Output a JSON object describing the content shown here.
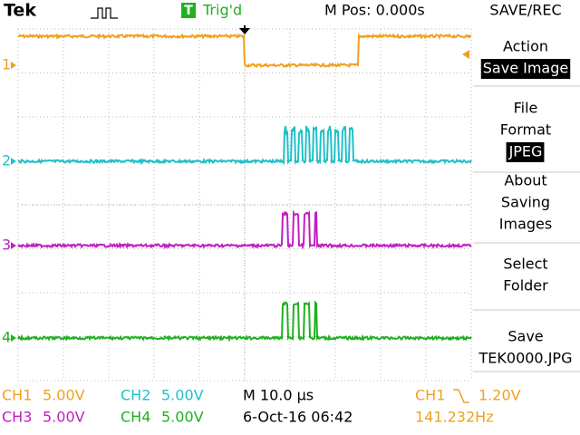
{
  "header": {
    "brand": "Tek",
    "trigger_source": "T",
    "trigger_status": "Trig'd",
    "position": "M Pos: 0.000s",
    "menu_title": "SAVE/REC"
  },
  "menu": [
    {
      "lines": [
        "Action"
      ],
      "value": "Save Image"
    },
    {
      "lines": [
        "File",
        "Format"
      ],
      "value": "JPEG"
    },
    {
      "lines": [
        "About",
        "Saving",
        "Images"
      ]
    },
    {
      "lines": [
        "Select",
        "Folder"
      ]
    },
    {
      "lines": [
        "Save"
      ],
      "value": "TEK0000.JPG"
    }
  ],
  "channels": [
    {
      "marker": "1",
      "name": "CH1",
      "scale": "5.00V"
    },
    {
      "marker": "2",
      "name": "CH2",
      "scale": "5.00V"
    },
    {
      "marker": "3",
      "name": "CH3",
      "scale": "5.00V"
    },
    {
      "marker": "4",
      "name": "CH4",
      "scale": "5.00V"
    }
  ],
  "status": {
    "timebase": "M 10.0 µs",
    "date": "6-Oct-16 06:42",
    "trigger_channel": "CH1",
    "trigger_level": "1.20V",
    "frequency": "141.232Hz"
  }
}
